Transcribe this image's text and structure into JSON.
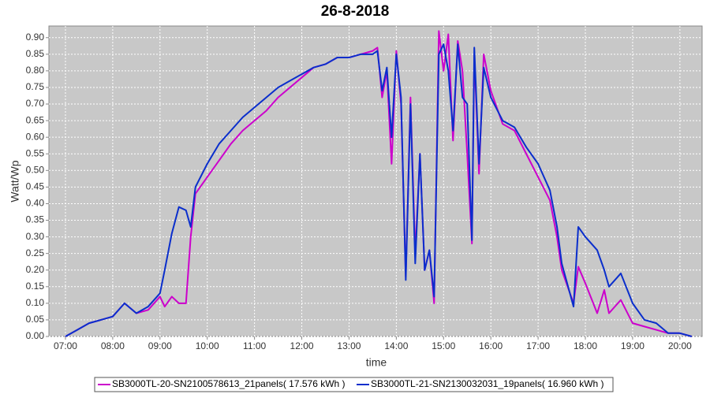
{
  "chart_data": {
    "type": "line",
    "title": "26-8-2018",
    "xlabel": "time",
    "ylabel": "Watt/Wp",
    "x": [
      7.0,
      7.25,
      7.5,
      7.75,
      8.0,
      8.25,
      8.5,
      8.75,
      9.0,
      9.1,
      9.25,
      9.4,
      9.55,
      9.65,
      9.75,
      10.0,
      10.25,
      10.5,
      10.75,
      11.0,
      11.25,
      11.5,
      11.75,
      12.0,
      12.25,
      12.5,
      12.75,
      13.0,
      13.25,
      13.5,
      13.6,
      13.7,
      13.8,
      13.9,
      14.0,
      14.1,
      14.2,
      14.3,
      14.4,
      14.5,
      14.6,
      14.7,
      14.8,
      14.9,
      15.0,
      15.1,
      15.2,
      15.3,
      15.4,
      15.5,
      15.6,
      15.65,
      15.75,
      15.85,
      16.0,
      16.25,
      16.5,
      16.75,
      17.0,
      17.25,
      17.4,
      17.5,
      17.75,
      17.85,
      18.0,
      18.25,
      18.4,
      18.5,
      18.75,
      19.0,
      19.25,
      19.5,
      19.75,
      20.0,
      20.25
    ],
    "series": [
      {
        "name": "SB3000TL-20-SN2100578613_21panels( 17.576 kWh )",
        "color": "#cc00cc",
        "values": [
          0.0,
          0.02,
          0.04,
          0.05,
          0.06,
          0.1,
          0.07,
          0.08,
          0.12,
          0.09,
          0.12,
          0.1,
          0.1,
          0.3,
          0.43,
          0.48,
          0.53,
          0.58,
          0.62,
          0.65,
          0.68,
          0.72,
          0.75,
          0.78,
          0.81,
          0.82,
          0.84,
          0.84,
          0.85,
          0.86,
          0.87,
          0.72,
          0.8,
          0.52,
          0.86,
          0.7,
          0.18,
          0.72,
          0.25,
          0.55,
          0.2,
          0.26,
          0.1,
          0.92,
          0.8,
          0.91,
          0.59,
          0.89,
          0.8,
          0.55,
          0.28,
          0.85,
          0.49,
          0.85,
          0.74,
          0.64,
          0.62,
          0.55,
          0.48,
          0.41,
          0.3,
          0.2,
          0.1,
          0.21,
          0.16,
          0.07,
          0.14,
          0.07,
          0.11,
          0.04,
          0.03,
          0.02,
          0.01,
          0.01,
          0.0
        ]
      },
      {
        "name": "SB3000TL-21-SN2130032031_19panels( 16.960 kWh )",
        "color": "#0a2ecc",
        "values": [
          0.0,
          0.02,
          0.04,
          0.05,
          0.06,
          0.1,
          0.07,
          0.09,
          0.13,
          0.2,
          0.31,
          0.39,
          0.38,
          0.33,
          0.45,
          0.52,
          0.58,
          0.62,
          0.66,
          0.69,
          0.72,
          0.75,
          0.77,
          0.79,
          0.81,
          0.82,
          0.84,
          0.84,
          0.85,
          0.85,
          0.86,
          0.74,
          0.81,
          0.6,
          0.85,
          0.72,
          0.17,
          0.7,
          0.22,
          0.55,
          0.2,
          0.26,
          0.12,
          0.85,
          0.88,
          0.8,
          0.62,
          0.88,
          0.72,
          0.7,
          0.29,
          0.87,
          0.52,
          0.81,
          0.72,
          0.65,
          0.63,
          0.57,
          0.52,
          0.44,
          0.33,
          0.22,
          0.09,
          0.33,
          0.3,
          0.26,
          0.2,
          0.15,
          0.19,
          0.1,
          0.05,
          0.04,
          0.01,
          0.01,
          0.0
        ]
      }
    ],
    "xlim": [
      6.65,
      20.47
    ],
    "xticks": [
      {
        "value": 7,
        "label": "07:00"
      },
      {
        "value": 8,
        "label": "08:00"
      },
      {
        "value": 9,
        "label": "09:00"
      },
      {
        "value": 10,
        "label": "10:00"
      },
      {
        "value": 11,
        "label": "11:00"
      },
      {
        "value": 12,
        "label": "12:00"
      },
      {
        "value": 13,
        "label": "13:00"
      },
      {
        "value": 14,
        "label": "14:00"
      },
      {
        "value": 15,
        "label": "15:00"
      },
      {
        "value": 16,
        "label": "16:00"
      },
      {
        "value": 17,
        "label": "17:00"
      },
      {
        "value": 18,
        "label": "18:00"
      },
      {
        "value": 19,
        "label": "19:00"
      },
      {
        "value": 20,
        "label": "20:00"
      }
    ],
    "ylim": [
      0,
      0.935
    ],
    "yticks": [
      {
        "value": 0,
        "label": "0.00"
      },
      0.05,
      {
        "value": 0.1,
        "label": "0.10"
      },
      0.15,
      {
        "value": 0.2,
        "label": "0.20"
      },
      0.25,
      {
        "value": 0.3,
        "label": "0.30"
      },
      0.35,
      {
        "value": 0.4,
        "label": "0.40"
      },
      0.45,
      {
        "value": 0.5,
        "label": "0.50"
      },
      0.55,
      {
        "value": 0.6,
        "label": "0.60"
      },
      0.65,
      {
        "value": 0.7,
        "label": "0.70"
      },
      0.75,
      {
        "value": 0.8,
        "label": "0.80"
      },
      0.85,
      {
        "value": 0.9,
        "label": "0.90"
      }
    ],
    "grid": true,
    "legend": "bottom"
  }
}
